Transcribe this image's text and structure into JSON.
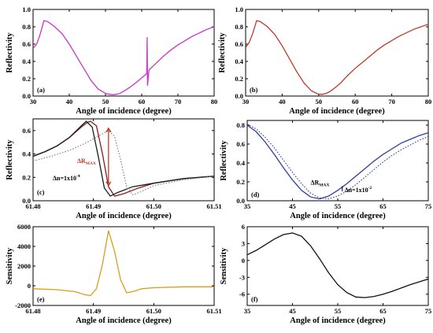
{
  "chart_data": [
    {
      "id": "a",
      "panel_label": "(a)",
      "type": "line",
      "xlabel": "Angle of incidence (degree)",
      "ylabel": "Reflectivity",
      "xlim": [
        30,
        80
      ],
      "ylim": [
        0,
        1.0
      ],
      "xticks": [
        "30",
        "40",
        "50",
        "60",
        "70",
        "80"
      ],
      "yticks": [
        "0.0",
        "0.2",
        "0.4",
        "0.6",
        "0.8",
        "1.0"
      ],
      "series": [
        {
          "color": "#cc33cc",
          "style": "solid",
          "x": [
            30,
            31,
            32,
            33,
            34,
            36,
            38,
            40,
            42,
            44,
            46,
            48,
            50,
            51,
            52,
            53,
            54,
            56,
            58,
            60,
            61,
            61.4,
            61.5,
            61.6,
            62,
            64,
            66,
            68,
            70,
            72,
            74,
            76,
            78,
            80
          ],
          "y": [
            0.55,
            0.6,
            0.72,
            0.87,
            0.86,
            0.8,
            0.72,
            0.6,
            0.46,
            0.32,
            0.18,
            0.08,
            0.03,
            0.02,
            0.015,
            0.02,
            0.03,
            0.08,
            0.14,
            0.21,
            0.245,
            0.26,
            0.68,
            0.12,
            0.3,
            0.38,
            0.46,
            0.53,
            0.59,
            0.64,
            0.69,
            0.73,
            0.77,
            0.8
          ]
        }
      ]
    },
    {
      "id": "b",
      "panel_label": "(b)",
      "type": "line",
      "xlabel": "Angle of incidence (degree)",
      "ylabel": "Reflectivity",
      "xlim": [
        30,
        80
      ],
      "ylim": [
        0,
        1.0
      ],
      "xticks": [
        "30",
        "40",
        "50",
        "60",
        "70",
        "80"
      ],
      "yticks": [
        "0.0",
        "0.2",
        "0.4",
        "0.6",
        "0.8",
        "1.0"
      ],
      "series": [
        {
          "color": "#c0392b",
          "style": "solid",
          "x": [
            30,
            31,
            32,
            33,
            34,
            36,
            38,
            40,
            42,
            44,
            46,
            48,
            50,
            51,
            52,
            53,
            54,
            56,
            58,
            60,
            62,
            64,
            66,
            68,
            70,
            72,
            74,
            76,
            78,
            80
          ],
          "y": [
            0.56,
            0.62,
            0.73,
            0.87,
            0.86,
            0.8,
            0.71,
            0.58,
            0.43,
            0.28,
            0.15,
            0.06,
            0.02,
            0.02,
            0.03,
            0.05,
            0.08,
            0.15,
            0.24,
            0.32,
            0.39,
            0.46,
            0.53,
            0.59,
            0.64,
            0.69,
            0.73,
            0.77,
            0.8,
            0.83
          ]
        }
      ]
    },
    {
      "id": "c",
      "panel_label": "(c)",
      "type": "line",
      "xlabel": "Angle of incidence (degree)",
      "ylabel": "Reflectivity",
      "xlim": [
        61.48,
        61.51
      ],
      "ylim": [
        0,
        0.7
      ],
      "xticks": [
        "61.48",
        "61.49",
        "61.50",
        "61.51"
      ],
      "yticks": [
        "0.0",
        "0.2",
        "0.4",
        "0.6"
      ],
      "annotations": [
        {
          "label": "ΔR",
          "sub": "MAX",
          "color": "#c0392b"
        },
        {
          "label": "Δn=1x10",
          "sup": "-4",
          "color": "#000000"
        }
      ],
      "series": [
        {
          "color": "#8b1a1a",
          "style": "solid",
          "x": [
            61.48,
            61.482,
            61.484,
            61.486,
            61.488,
            61.489,
            61.4895,
            61.4905,
            61.4915,
            61.4925,
            61.4935,
            61.495,
            61.4975,
            61.5,
            61.505,
            61.51
          ],
          "y": [
            0.38,
            0.42,
            0.47,
            0.54,
            0.63,
            0.67,
            0.68,
            0.64,
            0.4,
            0.12,
            0.04,
            0.06,
            0.11,
            0.15,
            0.19,
            0.21
          ]
        },
        {
          "color": "#1a1a1a",
          "style": "solid",
          "x": [
            61.48,
            61.482,
            61.484,
            61.486,
            61.488,
            61.4888,
            61.4898,
            61.4908,
            61.4918,
            61.4928,
            61.494,
            61.4965,
            61.5,
            61.505,
            61.51
          ],
          "y": [
            0.38,
            0.42,
            0.47,
            0.54,
            0.64,
            0.68,
            0.63,
            0.38,
            0.11,
            0.04,
            0.07,
            0.12,
            0.15,
            0.19,
            0.21
          ]
        },
        {
          "color": "#777777",
          "style": "dotted",
          "x": [
            61.48,
            61.483,
            61.486,
            61.489,
            61.491,
            61.4925,
            61.4935,
            61.4945,
            61.4955,
            61.4965,
            61.498,
            61.5,
            61.505,
            61.51
          ],
          "y": [
            0.34,
            0.38,
            0.43,
            0.5,
            0.56,
            0.6,
            0.55,
            0.35,
            0.12,
            0.05,
            0.08,
            0.13,
            0.18,
            0.21
          ]
        }
      ]
    },
    {
      "id": "d",
      "panel_label": "(d)",
      "type": "line",
      "xlabel": "Angle of incidence (degree)",
      "ylabel": "Reflectivity",
      "xlim": [
        35,
        75
      ],
      "ylim": [
        0,
        0.85
      ],
      "xticks": [
        "35",
        "45",
        "55",
        "65",
        "75"
      ],
      "yticks": [
        "0.0",
        "0.2",
        "0.4",
        "0.6",
        "0.8"
      ],
      "annotations": [
        {
          "label": "ΔR",
          "sub": "MAX",
          "color": "#000000"
        },
        {
          "label": "Δn=1x10",
          "sup": "-2",
          "color": "#000000"
        }
      ],
      "series": [
        {
          "color": "#2c3e9e",
          "style": "solid",
          "x": [
            35,
            37,
            39,
            41,
            43,
            45,
            47,
            49,
            51,
            53,
            55,
            57,
            59,
            61,
            63,
            65,
            67,
            69,
            71,
            73,
            75
          ],
          "y": [
            0.8,
            0.73,
            0.62,
            0.49,
            0.35,
            0.22,
            0.11,
            0.04,
            0.02,
            0.05,
            0.11,
            0.18,
            0.26,
            0.34,
            0.42,
            0.49,
            0.55,
            0.61,
            0.65,
            0.69,
            0.72
          ]
        },
        {
          "color": "#333399",
          "style": "dotted",
          "x": [
            35,
            37,
            39,
            41,
            43,
            45,
            47,
            49,
            51,
            53,
            55,
            57,
            59,
            61,
            63,
            65,
            67,
            69,
            71,
            73,
            75
          ],
          "y": [
            0.81,
            0.76,
            0.67,
            0.56,
            0.43,
            0.3,
            0.18,
            0.08,
            0.03,
            0.02,
            0.05,
            0.1,
            0.17,
            0.25,
            0.33,
            0.41,
            0.48,
            0.54,
            0.59,
            0.64,
            0.68
          ]
        }
      ]
    },
    {
      "id": "e",
      "panel_label": "(e)",
      "type": "line",
      "xlabel": "Angle of incidence (degree)",
      "ylabel": "Sensitivity",
      "xlim": [
        61.48,
        61.51
      ],
      "ylim": [
        -2000,
        6000
      ],
      "xticks": [
        "61.48",
        "61.49",
        "61.50",
        "61.51"
      ],
      "yticks": [
        "-2000",
        "0",
        "2000",
        "4000",
        "6000"
      ],
      "series": [
        {
          "color": "#d4a017",
          "style": "solid",
          "x": [
            61.48,
            61.484,
            61.487,
            61.4885,
            61.4895,
            61.4905,
            61.4915,
            61.4925,
            61.4935,
            61.4945,
            61.4955,
            61.4965,
            61.498,
            61.5,
            61.505,
            61.51
          ],
          "y": [
            -300,
            -400,
            -600,
            -900,
            -1000,
            -300,
            2200,
            5600,
            3500,
            600,
            -700,
            -600,
            -300,
            -200,
            -100,
            -100
          ]
        }
      ]
    },
    {
      "id": "f",
      "panel_label": "(f)",
      "type": "line",
      "xlabel": "Angle of incidence (degree)",
      "ylabel": "Sensitivity",
      "xlim": [
        35,
        75
      ],
      "ylim": [
        -8,
        6
      ],
      "xticks": [
        "35",
        "45",
        "55",
        "65",
        "75"
      ],
      "yticks": [
        "-6",
        "-3",
        "0",
        "3",
        "6"
      ],
      "series": [
        {
          "color": "#111111",
          "style": "solid",
          "x": [
            35,
            37,
            39,
            41,
            43,
            45,
            47,
            49,
            51,
            53,
            55,
            57,
            59,
            61,
            63,
            65,
            67,
            69,
            71,
            73,
            75
          ],
          "y": [
            1.0,
            1.8,
            2.8,
            3.8,
            4.6,
            4.9,
            4.3,
            2.6,
            0.3,
            -2.2,
            -4.3,
            -5.7,
            -6.5,
            -6.6,
            -6.4,
            -6.0,
            -5.5,
            -4.9,
            -4.3,
            -3.8,
            -3.3
          ]
        }
      ]
    }
  ]
}
